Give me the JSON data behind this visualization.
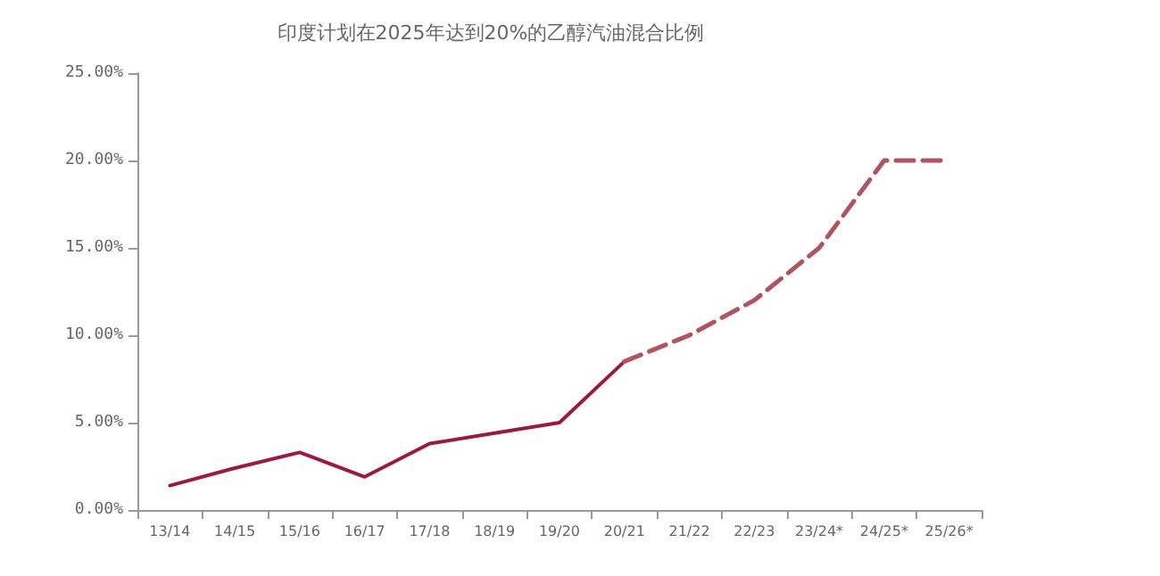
{
  "chart_data": {
    "type": "line",
    "title": "印度计划在2025年达到20%的乙醇汽油混合比例",
    "categories": [
      "13/14",
      "14/15",
      "15/16",
      "16/17",
      "17/18",
      "18/19",
      "19/20",
      "20/21",
      "21/22",
      "22/23",
      "23/24*",
      "24/25*",
      "25/26*"
    ],
    "series": [
      {
        "color": "#9b1b3f",
        "line_style": "solid",
        "values": [
          1.4,
          2.4,
          3.3,
          1.9,
          3.8,
          4.4,
          5.0,
          8.5,
          null,
          null,
          null,
          null,
          null
        ]
      },
      {
        "color": "#b05560",
        "line_style": "dashed",
        "values": [
          null,
          null,
          null,
          null,
          null,
          null,
          null,
          8.5,
          10.0,
          12.0,
          15.0,
          20.0,
          20.0
        ]
      }
    ],
    "ylim": [
      0,
      25
    ],
    "yticks": [
      {
        "value": 0,
        "label": "0.00%"
      },
      {
        "value": 5,
        "label": "5.00%"
      },
      {
        "value": 10,
        "label": "10.00%"
      },
      {
        "value": 15,
        "label": "15.00%"
      },
      {
        "value": 20,
        "label": "20.00%"
      },
      {
        "value": 25,
        "label": "25.00%"
      }
    ],
    "grid": false,
    "marker": "none"
  }
}
